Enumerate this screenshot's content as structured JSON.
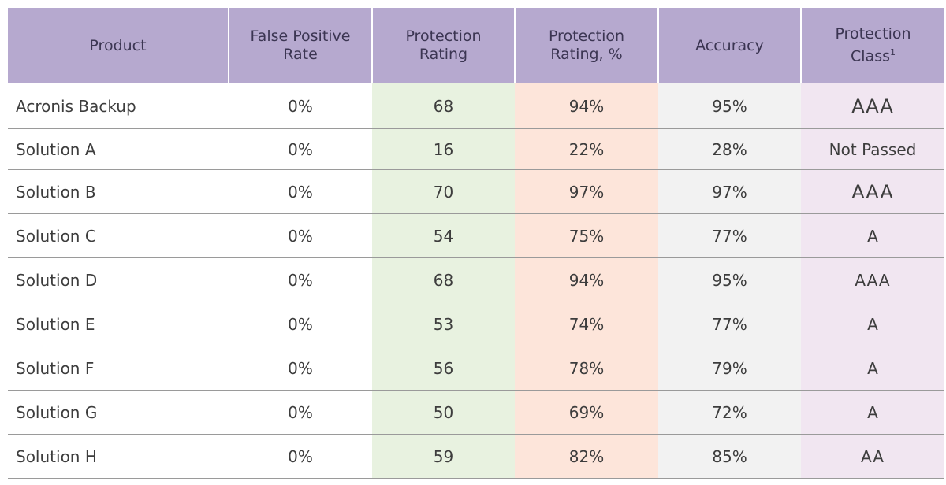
{
  "chart_data": {
    "type": "table",
    "columns": [
      "Product",
      "False Positive Rate",
      "Protection Rating",
      "Protection Rating, %",
      "Accuracy",
      "Protection Class"
    ],
    "header_lines": [
      [
        "Product"
      ],
      [
        "False Positive",
        "Rate"
      ],
      [
        "Protection",
        "Rating"
      ],
      [
        "Protection",
        "Rating, %"
      ],
      [
        "Accuracy"
      ],
      [
        "Protection",
        "Class"
      ]
    ],
    "footnote_marker": "1",
    "rows": [
      {
        "product": "Acronis Backup",
        "false_positive_rate": "0%",
        "protection_rating": "68",
        "protection_rating_pct": "94%",
        "accuracy": "95%",
        "protection_class": "AAA"
      },
      {
        "product": "Solution A",
        "false_positive_rate": "0%",
        "protection_rating": "16",
        "protection_rating_pct": "22%",
        "accuracy": "28%",
        "protection_class": "Not Passed"
      },
      {
        "product": "Solution B",
        "false_positive_rate": "0%",
        "protection_rating": "70",
        "protection_rating_pct": "97%",
        "accuracy": "97%",
        "protection_class": "AAA"
      },
      {
        "product": "Solution C",
        "false_positive_rate": "0%",
        "protection_rating": "54",
        "protection_rating_pct": "75%",
        "accuracy": "77%",
        "protection_class": "A"
      },
      {
        "product": "Solution D",
        "false_positive_rate": "0%",
        "protection_rating": "68",
        "protection_rating_pct": "94%",
        "accuracy": "95%",
        "protection_class": "AAA"
      },
      {
        "product": "Solution E",
        "false_positive_rate": "0%",
        "protection_rating": "53",
        "protection_rating_pct": "74%",
        "accuracy": "77%",
        "protection_class": "A"
      },
      {
        "product": "Solution F",
        "false_positive_rate": "0%",
        "protection_rating": "56",
        "protection_rating_pct": "78%",
        "accuracy": "79%",
        "protection_class": "A"
      },
      {
        "product": "Solution G",
        "false_positive_rate": "0%",
        "protection_rating": "50",
        "protection_rating_pct": "69%",
        "accuracy": "72%",
        "protection_class": "A"
      },
      {
        "product": "Solution H",
        "false_positive_rate": "0%",
        "protection_rating": "59",
        "protection_rating_pct": "82%",
        "accuracy": "85%",
        "protection_class": "AA"
      }
    ]
  },
  "colors": {
    "header_bg": "#b6a9cf",
    "protection_rating_bg": "#e8f2e0",
    "protection_rating_pct_bg": "#fde5da",
    "accuracy_bg": "#f2f2f2",
    "protection_class_bg": "#f1e6f1"
  }
}
